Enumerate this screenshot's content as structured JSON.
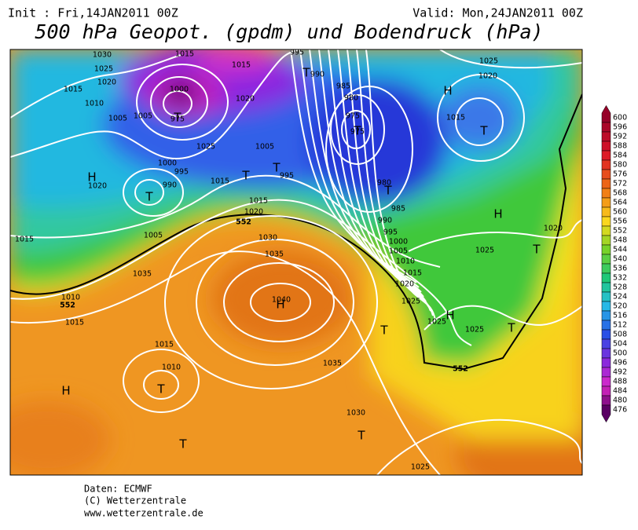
{
  "header": {
    "init": "Init : Fri,14JAN2011 00Z",
    "valid": "Valid: Mon,24JAN2011 00Z",
    "title": "500 hPa Geopot. (gpdm) und Bodendruck (hPa)"
  },
  "colorbar": {
    "values": [
      600,
      596,
      592,
      588,
      584,
      580,
      576,
      572,
      568,
      564,
      560,
      556,
      552,
      548,
      544,
      540,
      536,
      532,
      528,
      524,
      520,
      516,
      512,
      508,
      504,
      500,
      496,
      492,
      488,
      484,
      480,
      476
    ]
  },
  "map": {
    "pressure_labels": [
      1030,
      1015,
      1015,
      995,
      990,
      1025,
      1025,
      1020,
      1015,
      1010,
      1005,
      1005,
      1000,
      975,
      1020,
      985,
      980,
      975,
      975,
      1025,
      1005,
      1000,
      995,
      990,
      1015,
      995,
      980,
      985,
      990,
      995,
      1020,
      1015,
      1020,
      1030,
      1035,
      1015,
      1005,
      1005,
      1010,
      1015,
      1020,
      1025,
      1035,
      1040,
      1010,
      1015,
      1015,
      1010,
      1035,
      1030,
      1025,
      1025,
      1025,
      1025,
      1020,
      1020,
      1015,
      1000
    ],
    "contour_labels": [
      552,
      552,
      552
    ],
    "centers": [
      "T",
      "T",
      "H",
      "T",
      "T",
      "T",
      "T",
      "T",
      "H",
      "T",
      "H",
      "T",
      "H",
      "T",
      "T",
      "H",
      "H",
      "T",
      "T",
      "T"
    ]
  },
  "footer": [
    "Daten: ECMWF",
    "(C) Wetterzentrale",
    "www.wetterzentrale.de"
  ]
}
